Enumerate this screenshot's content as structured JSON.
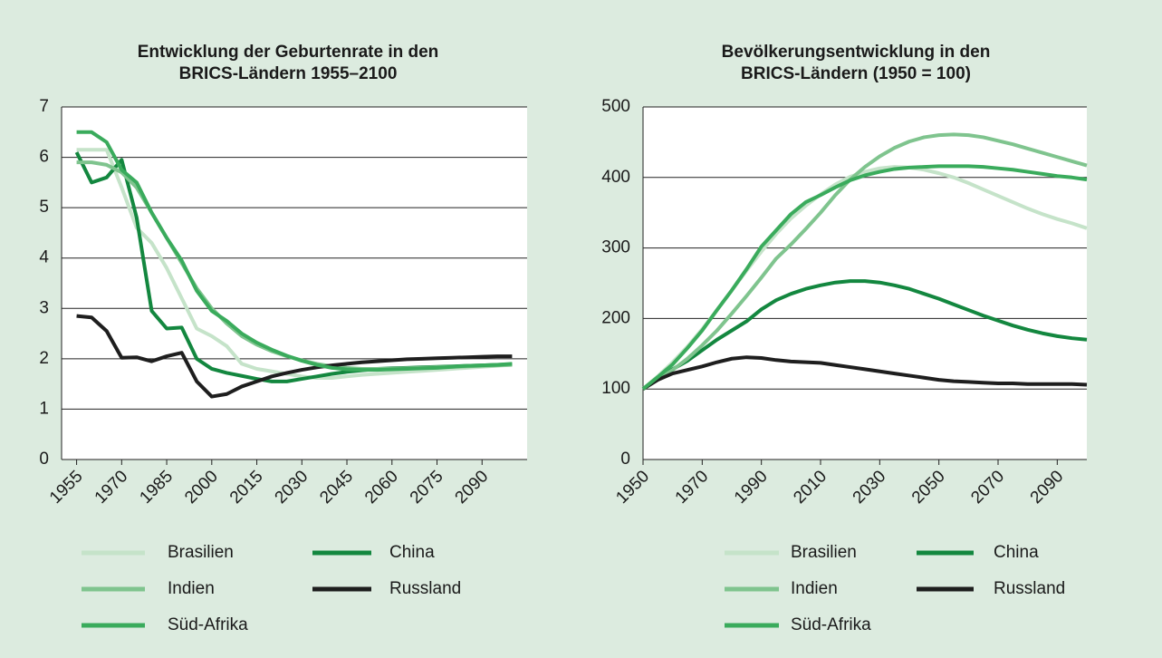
{
  "chart_data": [
    {
      "type": "line",
      "title": [
        "Entwicklung der Geburtenrate in den",
        "BRICS-Ländern 1955–2100"
      ],
      "x": [
        1955,
        1960,
        1965,
        1970,
        1975,
        1980,
        1985,
        1990,
        1995,
        2000,
        2005,
        2010,
        2015,
        2020,
        2025,
        2030,
        2035,
        2040,
        2045,
        2050,
        2055,
        2060,
        2065,
        2070,
        2075,
        2080,
        2085,
        2090,
        2095,
        2100
      ],
      "xlim": [
        1950,
        2105
      ],
      "xticks": [
        1955,
        1970,
        1985,
        2000,
        2015,
        2030,
        2045,
        2060,
        2075,
        2090
      ],
      "ylim": [
        0,
        7
      ],
      "yticks": [
        0,
        1,
        2,
        3,
        4,
        5,
        6,
        7
      ],
      "grid": true,
      "series": [
        {
          "name": "Brasilien",
          "color": "#c5e3c9",
          "values": [
            6.15,
            6.15,
            6.15,
            5.4,
            4.6,
            4.3,
            3.8,
            3.2,
            2.6,
            2.45,
            2.25,
            1.9,
            1.8,
            1.75,
            1.7,
            1.65,
            1.62,
            1.62,
            1.65,
            1.68,
            1.7,
            1.72,
            1.74,
            1.76,
            1.78,
            1.8,
            1.82,
            1.84,
            1.86,
            1.88
          ]
        },
        {
          "name": "China",
          "color": "#13873f",
          "values": [
            6.1,
            5.5,
            5.6,
            5.95,
            4.8,
            2.95,
            2.6,
            2.62,
            2.0,
            1.8,
            1.72,
            1.66,
            1.6,
            1.55,
            1.55,
            1.6,
            1.65,
            1.7,
            1.74,
            1.77,
            1.8,
            1.81,
            1.82,
            1.83,
            1.84,
            1.85,
            1.86,
            1.87,
            1.88,
            1.89
          ]
        },
        {
          "name": "Indien",
          "color": "#7fc48e",
          "values": [
            5.9,
            5.9,
            5.85,
            5.7,
            5.4,
            4.9,
            4.4,
            3.9,
            3.4,
            3.0,
            2.7,
            2.45,
            2.28,
            2.15,
            2.05,
            1.97,
            1.9,
            1.85,
            1.82,
            1.8,
            1.8,
            1.8,
            1.81,
            1.82,
            1.83,
            1.84,
            1.85,
            1.86,
            1.87,
            1.88
          ]
        },
        {
          "name": "Russland",
          "color": "#1e1e1e",
          "values": [
            2.85,
            2.82,
            2.55,
            2.02,
            2.03,
            1.95,
            2.05,
            2.12,
            1.55,
            1.25,
            1.3,
            1.45,
            1.55,
            1.65,
            1.72,
            1.78,
            1.83,
            1.87,
            1.9,
            1.93,
            1.95,
            1.97,
            1.99,
            2.0,
            2.01,
            2.02,
            2.03,
            2.04,
            2.05,
            2.05
          ]
        },
        {
          "name": "Süd-Afrika",
          "color": "#3aab5c",
          "values": [
            6.5,
            6.5,
            6.3,
            5.75,
            5.5,
            4.9,
            4.4,
            3.95,
            3.35,
            2.95,
            2.75,
            2.5,
            2.32,
            2.18,
            2.06,
            1.96,
            1.88,
            1.82,
            1.79,
            1.78,
            1.78,
            1.79,
            1.8,
            1.81,
            1.82,
            1.84,
            1.86,
            1.87,
            1.88,
            1.9
          ]
        }
      ]
    },
    {
      "type": "line",
      "title": [
        "Bevölkerungsentwicklung in den",
        "BRICS-Ländern (1950 = 100)"
      ],
      "x": [
        1950,
        1955,
        1960,
        1965,
        1970,
        1975,
        1980,
        1985,
        1990,
        1995,
        2000,
        2005,
        2010,
        2015,
        2020,
        2025,
        2030,
        2035,
        2040,
        2045,
        2050,
        2055,
        2060,
        2065,
        2070,
        2075,
        2080,
        2085,
        2090,
        2095,
        2100
      ],
      "xlim": [
        1950,
        2100
      ],
      "xticks": [
        1950,
        1970,
        1990,
        2010,
        2030,
        2050,
        2070,
        2090
      ],
      "ylim": [
        0,
        500
      ],
      "yticks": [
        0,
        100,
        200,
        300,
        400,
        500
      ],
      "grid": true,
      "series": [
        {
          "name": "Brasilien",
          "color": "#c5e3c9",
          "values": [
            100,
            118,
            138,
            160,
            185,
            212,
            240,
            268,
            295,
            320,
            342,
            360,
            376,
            390,
            401,
            408,
            413,
            415,
            414,
            411,
            406,
            400,
            392,
            383,
            374,
            365,
            356,
            348,
            341,
            335,
            328
          ]
        },
        {
          "name": "China",
          "color": "#13873f",
          "values": [
            100,
            115,
            128,
            140,
            155,
            170,
            183,
            196,
            213,
            226,
            235,
            242,
            247,
            251,
            253,
            253,
            251,
            247,
            242,
            235,
            228,
            220,
            212,
            204,
            197,
            190,
            184,
            179,
            175,
            172,
            170
          ]
        },
        {
          "name": "Indien",
          "color": "#7fc48e",
          "values": [
            100,
            113,
            127,
            143,
            162,
            183,
            207,
            232,
            258,
            285,
            305,
            327,
            350,
            375,
            397,
            415,
            430,
            442,
            451,
            457,
            460,
            461,
            460,
            457,
            452,
            447,
            441,
            435,
            429,
            423,
            417
          ]
        },
        {
          "name": "Russland",
          "color": "#1e1e1e",
          "values": [
            100,
            113,
            122,
            127,
            132,
            138,
            143,
            145,
            144,
            141,
            139,
            138,
            137,
            134,
            131,
            128,
            125,
            122,
            119,
            116,
            113,
            111,
            110,
            109,
            108,
            108,
            107,
            107,
            107,
            107,
            106
          ]
        },
        {
          "name": "Süd-Afrika",
          "color": "#3aab5c",
          "values": [
            100,
            117,
            135,
            158,
            183,
            212,
            240,
            270,
            302,
            325,
            348,
            365,
            375,
            386,
            396,
            403,
            408,
            412,
            414,
            415,
            416,
            416,
            416,
            415,
            413,
            411,
            408,
            405,
            402,
            400,
            397
          ]
        }
      ]
    }
  ]
}
